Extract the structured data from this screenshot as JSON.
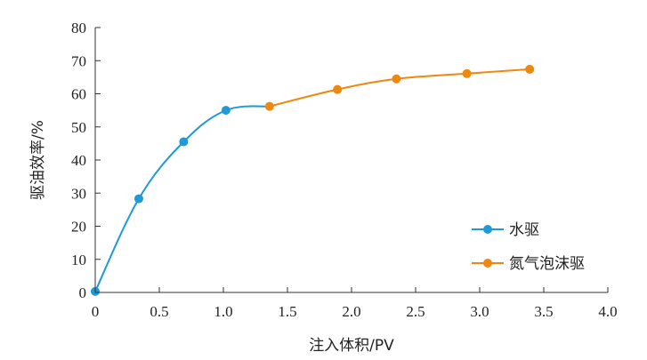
{
  "chart_data": {
    "type": "line",
    "title": "",
    "xlabel": "注入体积/PV",
    "ylabel": "驱油效率/%",
    "xlim": [
      0,
      4.0
    ],
    "ylim": [
      0,
      80
    ],
    "x_ticks": [
      "0",
      "0.5",
      "1.0",
      "1.5",
      "2.0",
      "2.5",
      "3.0",
      "3.5",
      "4.0"
    ],
    "y_ticks": [
      "0",
      "10",
      "20",
      "30",
      "40",
      "50",
      "60",
      "70",
      "80"
    ],
    "grid": false,
    "legend_position": "right",
    "series": [
      {
        "name": "水驱",
        "color": "#1f9ad6",
        "x": [
          0,
          0.34,
          0.69,
          1.02
        ],
        "y": [
          0.3,
          28.3,
          45.5,
          55.0
        ]
      },
      {
        "name": "氮气泡沫驱",
        "color": "#f0880f",
        "x": [
          1.36,
          1.89,
          2.35,
          2.9,
          3.39
        ],
        "y": [
          56.2,
          61.3,
          64.5,
          66.1,
          67.4
        ]
      }
    ]
  }
}
